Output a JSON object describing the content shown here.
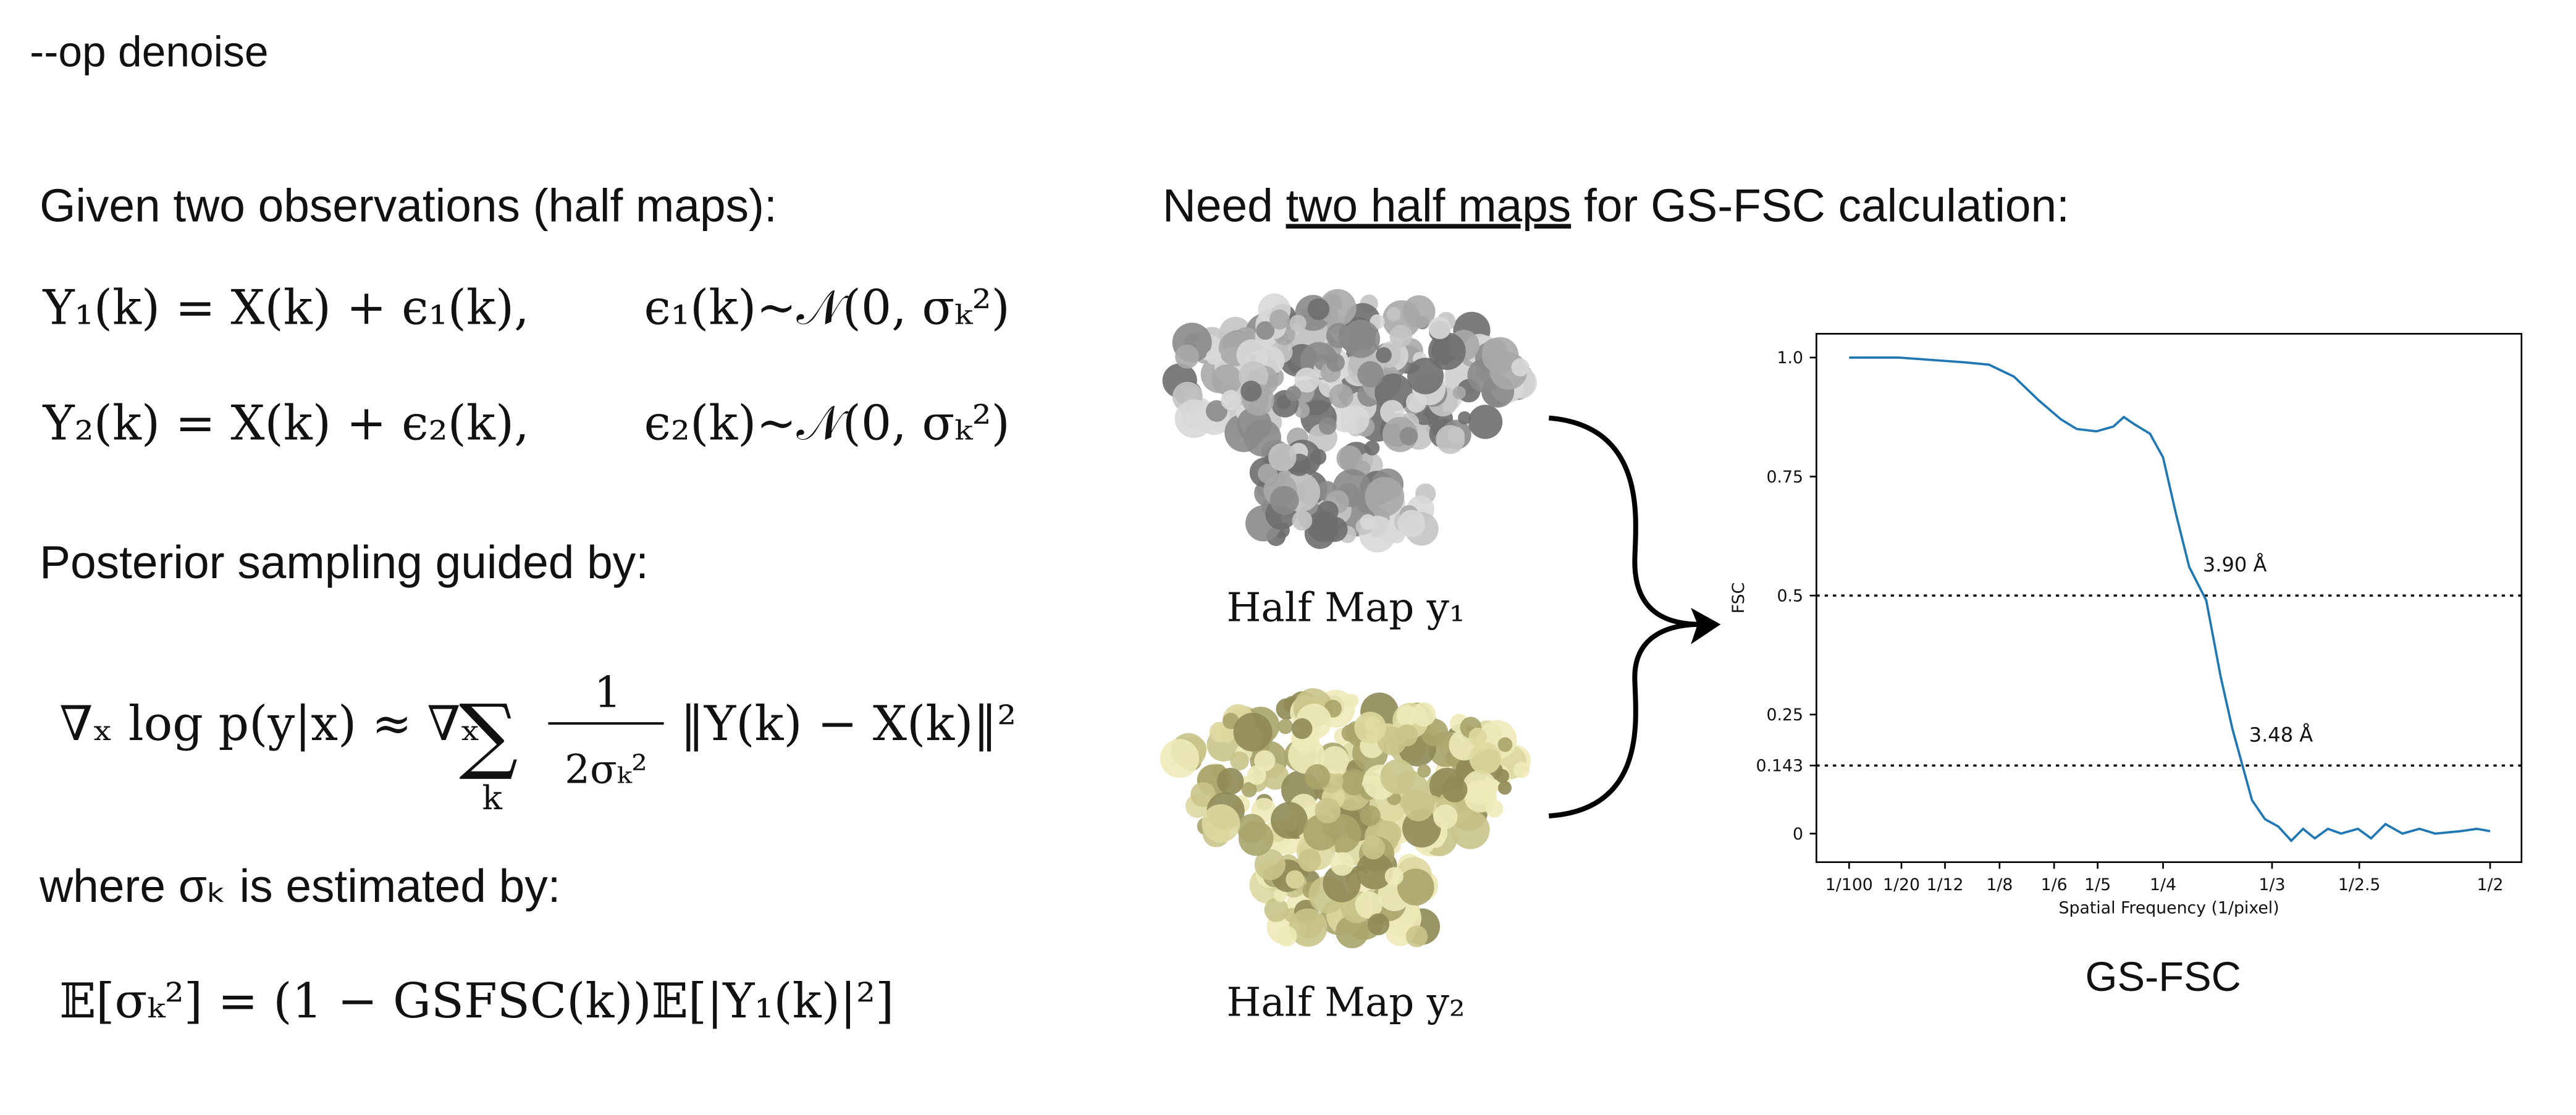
{
  "slide": {
    "command": "--op denoise",
    "left": {
      "intro": "Given two observations (half maps):",
      "equations": [
        {
          "lhs": "Y₁(k) = X(k) + ϵ₁(k),",
          "noise": "ϵ₁(k)~𝒩(0, σₖ²)"
        },
        {
          "lhs": "Y₂(k) = X(k) + ϵ₂(k),",
          "noise": "ϵ₂(k)~𝒩(0, σₖ²)"
        }
      ],
      "posterior": "Posterior sampling guided by:",
      "gradient": {
        "lhs": "∇ₓ log p(y|x) ≈ ∇ₓ",
        "sum": "∑",
        "sum_index": "k",
        "numerator": "1",
        "denominator": "2σₖ²",
        "norm": "‖Y(k) − X(k)‖²"
      },
      "where": "where σₖ is estimated by:",
      "estimate": "𝔼[σₖ²] = (1 − GSFSC(k))𝔼[|Y₁(k)|²]"
    },
    "right": {
      "heading_start": "Need ",
      "heading_link": "two half maps",
      "heading_end": " for GS-FSC calculation:",
      "map1": "Half Map y₁",
      "map2": "Half Map y₂",
      "caption": "GS-FSC"
    }
  },
  "chart_data": {
    "type": "line",
    "xlabel": "Spatial Frequency (1/pixel)",
    "ylabel": "FSC",
    "x": [
      0.01,
      0.048,
      0.073,
      0.098,
      0.117,
      0.136,
      0.155,
      0.172,
      0.184,
      0.199,
      0.212,
      0.22,
      0.228,
      0.24,
      0.25,
      0.26,
      0.27,
      0.283,
      0.294,
      0.303,
      0.311,
      0.318,
      0.328,
      0.338,
      0.348,
      0.357,
      0.366,
      0.376,
      0.386,
      0.399,
      0.409,
      0.42,
      0.433,
      0.446,
      0.458,
      0.477,
      0.49,
      0.5
    ],
    "series": [
      {
        "name": "FSC",
        "color": "#1f77b4",
        "values": [
          1.0,
          1.0,
          0.995,
          0.99,
          0.985,
          0.96,
          0.91,
          0.87,
          0.85,
          0.845,
          0.855,
          0.875,
          0.86,
          0.84,
          0.79,
          0.67,
          0.56,
          0.49,
          0.33,
          0.22,
          0.14,
          0.07,
          0.03,
          0.015,
          -0.015,
          0.01,
          -0.01,
          0.01,
          0.0,
          0.01,
          -0.01,
          0.02,
          0.0,
          0.01,
          0.0,
          0.005,
          0.01,
          0.005
        ]
      }
    ],
    "reference_lines": [
      0.5,
      0.143
    ],
    "annotations": [
      "3.90 Å",
      "3.48 Å"
    ],
    "xlim": [
      -0.015,
      0.524
    ],
    "ylim": [
      -0.06,
      1.05
    ],
    "xticks": [
      {
        "value": 0.01,
        "label": "1/100"
      },
      {
        "value": 0.05,
        "label": "1/20"
      },
      {
        "value": 0.0833,
        "label": "1/12"
      },
      {
        "value": 0.125,
        "label": "1/8"
      },
      {
        "value": 0.1667,
        "label": "1/6"
      },
      {
        "value": 0.2,
        "label": "1/5"
      },
      {
        "value": 0.25,
        "label": "1/4"
      },
      {
        "value": 0.3333,
        "label": "1/3"
      },
      {
        "value": 0.4,
        "label": "1/2.5"
      },
      {
        "value": 0.5,
        "label": "1/2"
      }
    ],
    "yticks": [
      0,
      0.143,
      0.25,
      0.5,
      0.75,
      {
        "value": 1.0,
        "label": "1.0"
      }
    ]
  }
}
